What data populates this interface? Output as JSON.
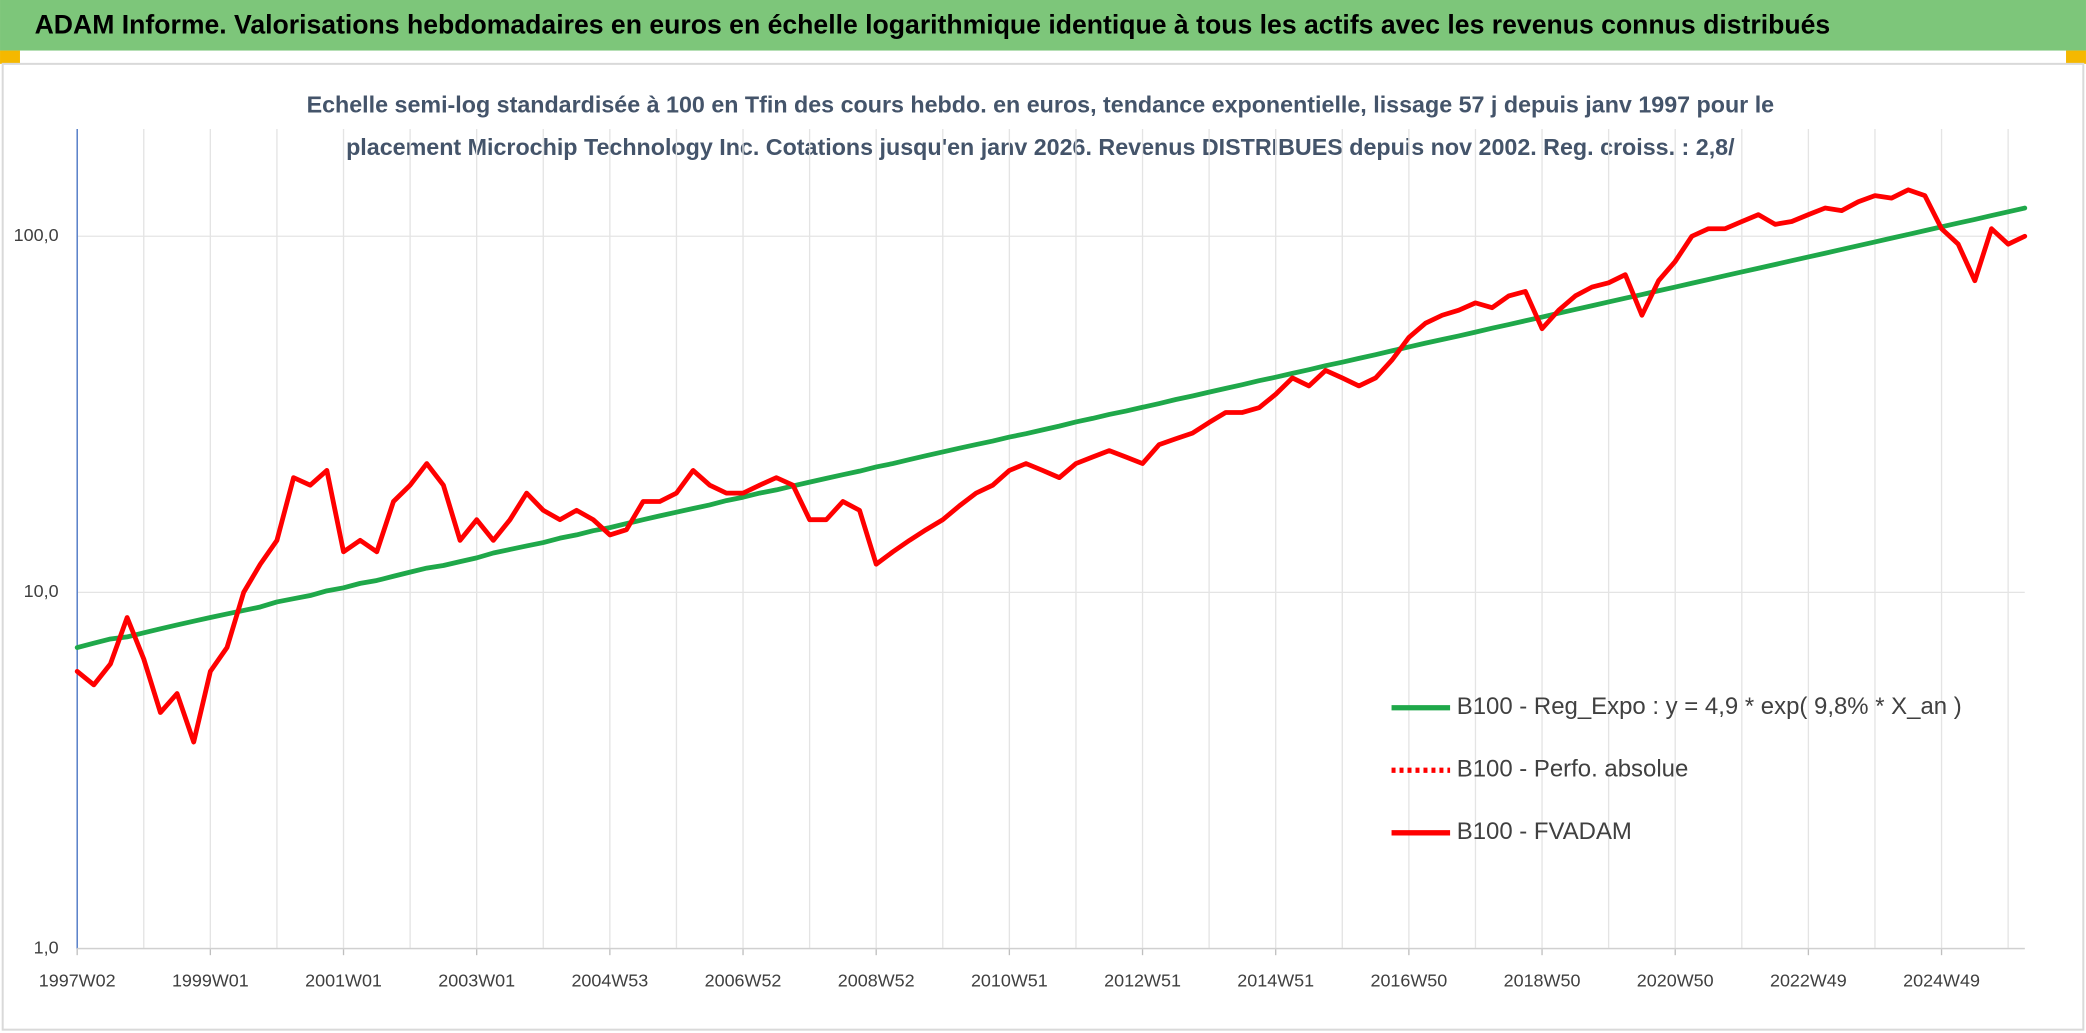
{
  "chart_data": {
    "type": "line",
    "title": "ADAM Informe. Valorisations hebdomadaires en euros en échelle logarithmique identique à tous les actifs avec les revenus connus distribués",
    "subtitle": [
      "Echelle semi-log standardisée à 100 en Tfin des cours hebdo. en euros, tendance exponentielle, lissage 57 j depuis janv 1997 pour le",
      "placement Microchip Technology Inc. Cotations jusqu'en janv 2026. Revenus DISTRIBUES depuis nov 2002. Reg. croiss. : 2,8/"
    ],
    "categories": [
      "1997W02",
      null,
      null,
      null,
      null,
      null,
      null,
      null,
      "1999W01",
      null,
      null,
      null,
      null,
      null,
      null,
      null,
      "2001W01",
      null,
      null,
      null,
      null,
      null,
      null,
      null,
      "2003W01",
      null,
      null,
      null,
      null,
      null,
      null,
      null,
      "2004W53",
      null,
      null,
      null,
      null,
      null,
      null,
      null,
      "2006W52",
      null,
      null,
      null,
      null,
      null,
      null,
      null,
      "2008W52",
      null,
      null,
      null,
      null,
      null,
      null,
      null,
      "2010W51",
      null,
      null,
      null,
      null,
      null,
      null,
      null,
      "2012W51",
      null,
      null,
      null,
      null,
      null,
      null,
      null,
      "2014W51",
      null,
      null,
      null,
      null,
      null,
      null,
      null,
      "2016W50",
      null,
      null,
      null,
      null,
      null,
      null,
      null,
      "2018W50",
      null,
      null,
      null,
      null,
      null,
      null,
      null,
      "2020W50",
      null,
      null,
      null,
      null,
      null,
      null,
      null,
      "2022W49",
      null,
      null,
      null,
      null,
      null,
      null,
      null,
      "2024W49",
      null,
      null,
      null,
      null,
      null
    ],
    "series": [
      {
        "name": "B100 - Reg_Expo : y = 4,9 * exp( 9,8% *  X_an )",
        "color": "#1fa84a",
        "style": "solid",
        "values": [
          7.0,
          7.2,
          7.4,
          7.5,
          7.7,
          7.9,
          8.1,
          8.3,
          8.5,
          8.7,
          8.9,
          9.1,
          9.4,
          9.6,
          9.8,
          10.1,
          10.3,
          10.6,
          10.8,
          11.1,
          11.4,
          11.7,
          11.9,
          12.2,
          12.5,
          12.9,
          13.2,
          13.5,
          13.8,
          14.2,
          14.5,
          14.9,
          15.2,
          15.6,
          16.0,
          16.4,
          16.8,
          17.2,
          17.6,
          18.1,
          18.5,
          19.0,
          19.4,
          19.9,
          20.4,
          20.9,
          21.4,
          21.9,
          22.5,
          23.0,
          23.6,
          24.2,
          24.8,
          25.4,
          26.0,
          26.6,
          27.3,
          27.9,
          28.6,
          29.3,
          30.1,
          30.8,
          31.6,
          32.3,
          33.1,
          33.9,
          34.8,
          35.6,
          36.5,
          37.4,
          38.3,
          39.3,
          40.2,
          41.2,
          42.2,
          43.3,
          44.3,
          45.4,
          46.5,
          47.7,
          48.9,
          50.1,
          51.3,
          52.5,
          53.8,
          55.2,
          56.5,
          57.9,
          59.3,
          60.8,
          62.3,
          63.8,
          65.4,
          67.0,
          68.6,
          70.3,
          72.0,
          73.8,
          75.6,
          77.5,
          79.4,
          81.3,
          83.3,
          85.4,
          87.5,
          89.6,
          91.8,
          94.1,
          96.4,
          98.8,
          101.2,
          103.7,
          106.3,
          108.9,
          111.5,
          114.3,
          117.1,
          120.0
        ]
      },
      {
        "name": "B100 - Perfo. absolue",
        "color": "#ff0000",
        "style": "dotted",
        "values": [
          null,
          null,
          null,
          null,
          null,
          null,
          null,
          null,
          null,
          null,
          null,
          null,
          null,
          null,
          null,
          null,
          null,
          null,
          null,
          null,
          null,
          null,
          null,
          null,
          null,
          null,
          null,
          null,
          null,
          null,
          null,
          null,
          null,
          null,
          null,
          null,
          null,
          null,
          null,
          null,
          null,
          null,
          null,
          null,
          null,
          null,
          null,
          null,
          null,
          null,
          null,
          null,
          null,
          null,
          null,
          null,
          null,
          null,
          null,
          null,
          null,
          null,
          null,
          null,
          null,
          null,
          null,
          null,
          null,
          null,
          null,
          null,
          null,
          null,
          null,
          null,
          null,
          null,
          null,
          null,
          null,
          null,
          null,
          null,
          null,
          null,
          null,
          null,
          null,
          null,
          null,
          null,
          null,
          null,
          null,
          null,
          null,
          null,
          null,
          null,
          null,
          null,
          null,
          null,
          null,
          null,
          null,
          null,
          null,
          null,
          null,
          null,
          null,
          null,
          null,
          null,
          null,
          null
        ]
      },
      {
        "name": "B100 - FVADAM",
        "color": "#ff0000",
        "style": "solid",
        "values": [
          6.0,
          5.5,
          6.3,
          8.5,
          6.5,
          4.6,
          5.2,
          3.8,
          6.0,
          7.0,
          10,
          12,
          14,
          21,
          20,
          22,
          13,
          14,
          13,
          18,
          20,
          23,
          20,
          14,
          16,
          14,
          16,
          19,
          17,
          16,
          17,
          16,
          14.5,
          15,
          18,
          18,
          19,
          22,
          20,
          19,
          19,
          20,
          21,
          20,
          16,
          16,
          18,
          17,
          12,
          13,
          14,
          15,
          16,
          17.5,
          19,
          20,
          22,
          23,
          22,
          21,
          23,
          24,
          25,
          24,
          23,
          26,
          27,
          28,
          30,
          32,
          32,
          33,
          36,
          40,
          38,
          42,
          40,
          38,
          40,
          45,
          52,
          57,
          60,
          62,
          65,
          63,
          68,
          70,
          55,
          62,
          68,
          72,
          74,
          78,
          60,
          75,
          85,
          100,
          105,
          105,
          110,
          115,
          108,
          110,
          115,
          120,
          118,
          125,
          130,
          128,
          135,
          130,
          105,
          95,
          75,
          105,
          95,
          100
        ]
      }
    ],
    "log_y": true,
    "ylim": [
      1,
      200
    ],
    "yticks": [
      {
        "value": 1,
        "label": "1,0"
      },
      {
        "value": 10,
        "label": "10,0"
      },
      {
        "value": 100,
        "label": "100,0"
      }
    ],
    "grid": true,
    "legend": "lower right"
  }
}
